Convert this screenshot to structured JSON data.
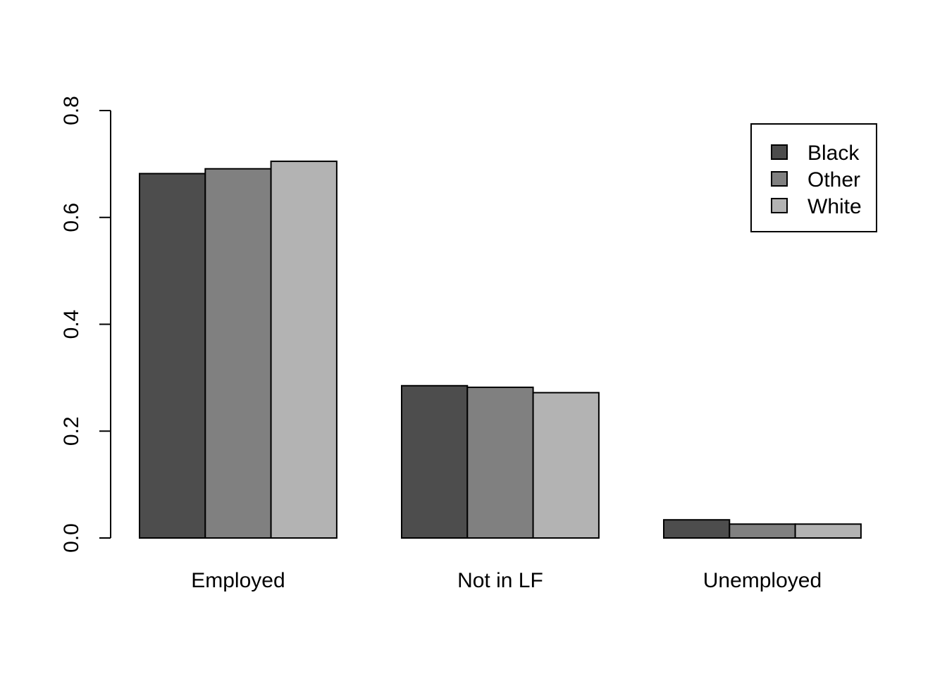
{
  "chart_data": {
    "type": "bar",
    "title": "",
    "xlabel": "",
    "ylabel": "",
    "categories": [
      "Employed",
      "Not in LF",
      "Unemployed"
    ],
    "series": [
      {
        "name": "Black",
        "color": "#4d4d4d",
        "values": [
          0.682,
          0.285,
          0.034
        ]
      },
      {
        "name": "Other",
        "color": "#808080",
        "values": [
          0.691,
          0.282,
          0.026
        ]
      },
      {
        "name": "White",
        "color": "#b3b3b3",
        "values": [
          0.705,
          0.272,
          0.026
        ]
      }
    ],
    "ylim": [
      0,
      0.8
    ],
    "yticks": [
      "0.0",
      "0.2",
      "0.4",
      "0.6",
      "0.8"
    ],
    "grid": false,
    "legend_position": "top-right"
  }
}
